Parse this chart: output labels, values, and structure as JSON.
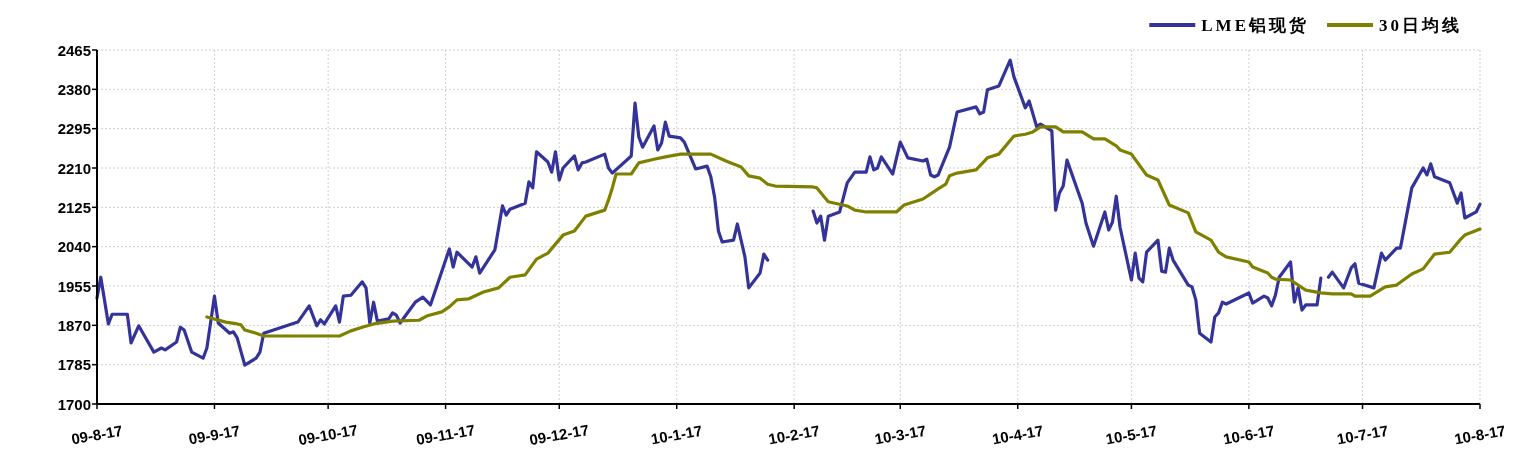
{
  "chart_data": {
    "type": "line",
    "legend": "top right",
    "grid": true,
    "marker": "none",
    "line_style": "solid",
    "xlim": [
      "2009-08-17",
      "2010-08-17"
    ],
    "xticks": [
      {
        "value": "2009-08-17",
        "label": "09-8-17"
      },
      {
        "value": "2009-09-17",
        "label": "09-9-17"
      },
      {
        "value": "2009-10-17",
        "label": "09-10-17"
      },
      {
        "value": "2009-11-17",
        "label": "09-11-17"
      },
      {
        "value": "2009-12-17",
        "label": "09-12-17"
      },
      {
        "value": "2010-01-17",
        "label": "10-1-17"
      },
      {
        "value": "2010-02-17",
        "label": "10-2-17"
      },
      {
        "value": "2010-03-17",
        "label": "10-3-17"
      },
      {
        "value": "2010-04-17",
        "label": "10-4-17"
      },
      {
        "value": "2010-05-17",
        "label": "10-5-17"
      },
      {
        "value": "2010-06-17",
        "label": "10-6-17"
      },
      {
        "value": "2010-07-17",
        "label": "10-7-17"
      },
      {
        "value": "2010-08-17",
        "label": "10-8-17"
      }
    ],
    "ylim": [
      1700,
      2465
    ],
    "yticks": [
      1700,
      1785,
      1870,
      1955,
      2040,
      2125,
      2210,
      2295,
      2380,
      2465
    ],
    "series": [
      {
        "name": "LME铝现货",
        "color": "#333399",
        "x": [
          "2009-08-17",
          "2009-08-18",
          "2009-08-20",
          "2009-08-21",
          "2009-08-25",
          "2009-08-26",
          "2009-08-28",
          "2009-09-01",
          "2009-09-03",
          "2009-09-04",
          "2009-09-07",
          "2009-09-08",
          "2009-09-09",
          "2009-09-11",
          "2009-09-14",
          "2009-09-15",
          "2009-09-17",
          "2009-09-18",
          "2009-09-21",
          "2009-09-22",
          "2009-09-23",
          "2009-09-25",
          "2009-09-28",
          "2009-09-29",
          "2009-09-30",
          "2009-10-09",
          "2009-10-12",
          "2009-10-14",
          "2009-10-15",
          "2009-10-16",
          "2009-10-19",
          "2009-10-20",
          "2009-10-21",
          "2009-10-23",
          "2009-10-26",
          "2009-10-27",
          "2009-10-28",
          "2009-10-29",
          "2009-10-30",
          "2009-11-02",
          "2009-11-03",
          "2009-11-04",
          "2009-11-05",
          "2009-11-09",
          "2009-11-11",
          "2009-11-13",
          "2009-11-18",
          "2009-11-19",
          "2009-11-20",
          "2009-11-24",
          "2009-11-25",
          "2009-11-26",
          "2009-11-30",
          "2009-12-02",
          "2009-12-03",
          "2009-12-04",
          "2009-12-08",
          "2009-12-09",
          "2009-12-10",
          "2009-12-11",
          "2009-12-14",
          "2009-12-15",
          "2009-12-16",
          "2009-12-17",
          "2009-12-18",
          "2009-12-21",
          "2009-12-22",
          "2009-12-23",
          "2009-12-24",
          "2009-12-29",
          "2009-12-30",
          "2009-12-31",
          "2010-01-05",
          "2010-01-06",
          "2010-01-07",
          "2010-01-08",
          "2010-01-11",
          "2010-01-12",
          "2010-01-13",
          "2010-01-14",
          "2010-01-15",
          "2010-01-18",
          "2010-01-19",
          "2010-01-22",
          "2010-01-25",
          "2010-01-26",
          "2010-01-27",
          "2010-01-28",
          "2010-01-29",
          "2010-02-01",
          "2010-02-02",
          "2010-02-04",
          "2010-02-05",
          "2010-02-08",
          "2010-02-09",
          "2010-02-10",
          "2010-02-16",
          "2010-02-22",
          "2010-02-23",
          "2010-02-24",
          "2010-02-25",
          "2010-02-26",
          "2010-03-01",
          "2010-03-03",
          "2010-03-05",
          "2010-03-08",
          "2010-03-09",
          "2010-03-10",
          "2010-03-11",
          "2010-03-12",
          "2010-03-15",
          "2010-03-17",
          "2010-03-19",
          "2010-03-23",
          "2010-03-24",
          "2010-03-25",
          "2010-03-26",
          "2010-03-27",
          "2010-03-30",
          "2010-04-01",
          "2010-04-06",
          "2010-04-07",
          "2010-04-08",
          "2010-04-09",
          "2010-04-12",
          "2010-04-15",
          "2010-04-16",
          "2010-04-19",
          "2010-04-20",
          "2010-04-22",
          "2010-04-23",
          "2010-04-26",
          "2010-04-27",
          "2010-04-28",
          "2010-04-29",
          "2010-04-30",
          "2010-05-04",
          "2010-05-05",
          "2010-05-07",
          "2010-05-10",
          "2010-05-11",
          "2010-05-12",
          "2010-05-13",
          "2010-05-14",
          "2010-05-17",
          "2010-05-18",
          "2010-05-19",
          "2010-05-20",
          "2010-05-21",
          "2010-05-24",
          "2010-05-25",
          "2010-05-26",
          "2010-05-27",
          "2010-05-28",
          "2010-06-01",
          "2010-06-02",
          "2010-06-03",
          "2010-06-04",
          "2010-06-07",
          "2010-06-08",
          "2010-06-09",
          "2010-06-10",
          "2010-06-11",
          "2010-06-17",
          "2010-06-18",
          "2010-06-21",
          "2010-06-22",
          "2010-06-23",
          "2010-06-24",
          "2010-06-25",
          "2010-06-28",
          "2010-06-29",
          "2010-06-30",
          "2010-07-01",
          "2010-07-02",
          "2010-07-05",
          "2010-07-06",
          "2010-07-07",
          "2010-07-08",
          "2010-07-09",
          "2010-07-12",
          "2010-07-14",
          "2010-07-15",
          "2010-07-16",
          "2010-07-20",
          "2010-07-22",
          "2010-07-23",
          "2010-07-26",
          "2010-07-27",
          "2010-07-28",
          "2010-07-30",
          "2010-08-02",
          "2010-08-03",
          "2010-08-04",
          "2010-08-05",
          "2010-08-09",
          "2010-08-11",
          "2010-08-12",
          "2010-08-13",
          "2010-08-16",
          "2010-08-17"
        ],
        "values": [
          1929,
          1974,
          1873,
          1894,
          1894,
          1832,
          1869,
          1812,
          1821,
          1817,
          1834,
          1866,
          1860,
          1812,
          1799,
          1821,
          1933,
          1875,
          1853,
          1856,
          1843,
          1784,
          1799,
          1812,
          1853,
          1877,
          1912,
          1869,
          1882,
          1873,
          1912,
          1877,
          1933,
          1935,
          1964,
          1951,
          1875,
          1920,
          1879,
          1884,
          1897,
          1892,
          1875,
          1920,
          1931,
          1914,
          2035,
          1996,
          2028,
          1996,
          2018,
          1983,
          2033,
          2128,
          2108,
          2121,
          2134,
          2180,
          2167,
          2245,
          2223,
          2201,
          2245,
          2184,
          2210,
          2236,
          2206,
          2221,
          2223,
          2240,
          2210,
          2199,
          2236,
          2350,
          2277,
          2255,
          2301,
          2249,
          2264,
          2309,
          2279,
          2275,
          2266,
          2208,
          2214,
          2191,
          2147,
          2074,
          2050,
          2054,
          2089,
          2018,
          1951,
          1983,
          2024,
          2011,
          null,
          2117,
          2091,
          2106,
          2054,
          2106,
          2115,
          2178,
          2201,
          2201,
          2234,
          2206,
          2210,
          2234,
          2197,
          2266,
          2232,
          2225,
          2229,
          2195,
          2191,
          2195,
          2255,
          2331,
          2342,
          2327,
          2331,
          2379,
          2387,
          2443,
          2407,
          2340,
          2355,
          2299,
          2305,
          2290,
          2119,
          2156,
          2171,
          2227,
          2134,
          2091,
          2041,
          2115,
          2076,
          2093,
          2149,
          2082,
          1968,
          2026,
          1972,
          1964,
          2028,
          2054,
          1987,
          1985,
          2037,
          2011,
          1957,
          1953,
          1925,
          1853,
          1834,
          1888,
          1897,
          1920,
          1916,
          1940,
          1918,
          1933,
          1929,
          1912,
          1935,
          1974,
          2007,
          1920,
          1951,
          1903,
          1914,
          1914,
          1972,
          null,
          1974,
          1985,
          1951,
          1994,
          2003,
          1961,
          1951,
          2026,
          2011,
          2037,
          2037,
          2080,
          2167,
          2210,
          2195,
          2219,
          2191,
          2178,
          2134,
          2156,
          2102,
          2115,
          2132
        ]
      },
      {
        "name": "30日均线",
        "color": "#808000",
        "x": [
          "2009-09-15",
          "2009-09-20",
          "2009-09-23",
          "2009-09-24",
          "2009-09-25",
          "2009-09-28",
          "2009-09-30",
          "2009-10-20",
          "2009-10-23",
          "2009-10-26",
          "2009-10-29",
          "2009-11-03",
          "2009-11-10",
          "2009-11-12",
          "2009-11-16",
          "2009-11-18",
          "2009-11-20",
          "2009-11-23",
          "2009-11-27",
          "2009-12-01",
          "2009-12-04",
          "2009-12-08",
          "2009-12-11",
          "2009-12-14",
          "2009-12-18",
          "2009-12-21",
          "2009-12-24",
          "2009-12-29",
          "2009-12-30",
          "2009-12-31",
          "2010-01-01",
          "2010-01-05",
          "2010-01-07",
          "2010-01-11",
          "2010-01-14",
          "2010-01-18",
          "2010-01-26",
          "2010-01-30",
          "2010-02-03",
          "2010-02-05",
          "2010-02-08",
          "2010-02-10",
          "2010-02-12",
          "2010-02-22",
          "2010-02-23",
          "2010-02-25",
          "2010-02-26",
          "2010-03-03",
          "2010-03-05",
          "2010-03-08",
          "2010-03-16",
          "2010-03-18",
          "2010-03-23",
          "2010-03-27",
          "2010-03-29",
          "2010-03-30",
          "2010-04-01",
          "2010-04-06",
          "2010-04-09",
          "2010-04-12",
          "2010-04-16",
          "2010-04-19",
          "2010-04-21",
          "2010-04-23",
          "2010-04-27",
          "2010-04-29",
          "2010-05-04",
          "2010-05-07",
          "2010-05-10",
          "2010-05-13",
          "2010-05-14",
          "2010-05-17",
          "2010-05-21",
          "2010-05-24",
          "2010-05-27",
          "2010-06-01",
          "2010-06-03",
          "2010-06-07",
          "2010-06-09",
          "2010-06-11",
          "2010-06-17",
          "2010-06-18",
          "2010-06-22",
          "2010-06-23",
          "2010-06-24",
          "2010-06-28",
          "2010-07-02",
          "2010-07-06",
          "2010-07-09",
          "2010-07-14",
          "2010-07-15",
          "2010-07-19",
          "2010-07-23",
          "2010-07-26",
          "2010-07-30",
          "2010-08-02",
          "2010-08-05",
          "2010-08-09",
          "2010-08-12",
          "2010-08-13",
          "2010-08-17"
        ],
        "values": [
          1888,
          1877,
          1873,
          1871,
          1860,
          1853,
          1847,
          1847,
          1858,
          1866,
          1873,
          1879,
          1881,
          1890,
          1899,
          1910,
          1925,
          1927,
          1942,
          1951,
          1974,
          1979,
          2013,
          2026,
          2065,
          2074,
          2106,
          2119,
          2141,
          2167,
          2197,
          2197,
          2221,
          2229,
          2234,
          2240,
          2240,
          2225,
          2212,
          2193,
          2188,
          2175,
          2171,
          2169,
          2167,
          2147,
          2137,
          2128,
          2119,
          2115,
          2115,
          2130,
          2143,
          2165,
          2175,
          2193,
          2199,
          2206,
          2232,
          2240,
          2279,
          2283,
          2288,
          2299,
          2299,
          2288,
          2288,
          2273,
          2273,
          2258,
          2249,
          2240,
          2195,
          2184,
          2130,
          2113,
          2072,
          2054,
          2028,
          2018,
          2007,
          1996,
          1983,
          1974,
          1970,
          1968,
          1946,
          1940,
          1938,
          1938,
          1933,
          1933,
          1953,
          1957,
          1981,
          1992,
          2024,
          2028,
          2057,
          2065,
          2078
        ]
      }
    ]
  }
}
